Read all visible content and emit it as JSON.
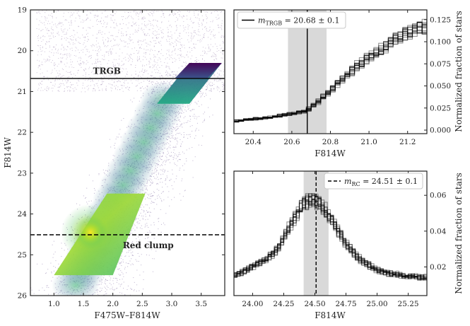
{
  "chart_data": [
    {
      "id": "cmd",
      "type": "scatter",
      "subtype": "color-magnitude density diagram",
      "xlabel": "F475W–F814W",
      "ylabel": "F814W",
      "xlim": [
        0.6,
        3.9
      ],
      "ylim": [
        26,
        19
      ],
      "y_inverted": true,
      "xticks": [
        1.0,
        1.5,
        2.0,
        2.5,
        3.0,
        3.5
      ],
      "xtick_labels": [
        "1.0",
        "1.5",
        "2.0",
        "2.5",
        "3.0",
        "3.5"
      ],
      "yticks": [
        19,
        20,
        21,
        22,
        23,
        24,
        25,
        26
      ],
      "ytick_labels": [
        "19",
        "20",
        "21",
        "22",
        "23",
        "24",
        "25",
        "26"
      ],
      "hlines": [
        {
          "name": "TRGB",
          "y": 20.68,
          "style": "solid"
        },
        {
          "name": "Red clump",
          "y": 24.51,
          "style": "dashed"
        }
      ],
      "selection_boxes": [
        {
          "name": "TRGB box",
          "corners": [
            [
              3.3,
              20.3
            ],
            [
              3.85,
              20.3
            ],
            [
              3.3,
              21.3
            ],
            [
              2.75,
              21.3
            ]
          ]
        },
        {
          "name": "Red clump box",
          "corners": [
            [
              1.9,
              23.5
            ],
            [
              2.55,
              23.5
            ],
            [
              2.0,
              25.5
            ],
            [
              1.0,
              25.5
            ]
          ]
        }
      ],
      "annotations": [
        {
          "text": "TRGB",
          "x": 1.88,
          "y": 20.5
        },
        {
          "text": "Red clump",
          "x": 2.65,
          "y": 24.75
        }
      ]
    },
    {
      "id": "trgb_lf",
      "type": "line",
      "subtype": "step luminosity functions (bootstrap realizations)",
      "xlabel": "F814W",
      "ylabel": "Normalized fraction of stars",
      "xlim": [
        20.3,
        21.3
      ],
      "ylim": [
        -0.004,
        0.136
      ],
      "xticks": [
        20.4,
        20.6,
        20.8,
        21.0,
        21.2
      ],
      "xtick_labels": [
        "20.4",
        "20.6",
        "20.8",
        "21.0",
        "21.2"
      ],
      "yticks": [
        0.0,
        0.025,
        0.05,
        0.075,
        0.1,
        0.125
      ],
      "ytick_labels": [
        "0.000",
        "0.025",
        "0.050",
        "0.075",
        "0.100",
        "0.125"
      ],
      "legend": "m<sub>TRGB</sub> = 20.68 ± 0.1",
      "legend_parts": {
        "symbol": "m",
        "subscript": "TRGB",
        "value": " = 20.68 ± 0.1"
      },
      "marker_line": 20.68,
      "band": [
        20.58,
        20.78
      ],
      "bin_width": 0.025,
      "n_realizations": 16,
      "mean_curve": {
        "x": [
          20.3,
          20.5,
          20.68,
          20.75,
          20.85,
          20.95,
          21.05,
          21.15,
          21.3
        ],
        "y": [
          0.01,
          0.015,
          0.022,
          0.035,
          0.055,
          0.075,
          0.09,
          0.105,
          0.118
        ]
      }
    },
    {
      "id": "rc_lf",
      "type": "line",
      "subtype": "step luminosity functions (bootstrap realizations)",
      "xlabel": "F814W",
      "ylabel": "Normalized fraction of stars",
      "xlim": [
        23.85,
        25.4
      ],
      "ylim": [
        0.004,
        0.0735
      ],
      "xticks": [
        24.0,
        24.25,
        24.5,
        24.75,
        25.0,
        25.25
      ],
      "xtick_labels": [
        "24.00",
        "24.25",
        "24.50",
        "24.75",
        "25.00",
        "25.25"
      ],
      "yticks": [
        0.02,
        0.04,
        0.06
      ],
      "ytick_labels": [
        "0.02",
        "0.04",
        "0.06"
      ],
      "legend": "m<sub>RC</sub> = 24.51 ± 0.1",
      "legend_parts": {
        "symbol": "m",
        "subscript": "RC",
        "value": " = 24.51 ± 0.1"
      },
      "marker_line": 24.51,
      "band": [
        24.41,
        24.61
      ],
      "bin_width": 0.025,
      "n_realizations": 16,
      "mean_curve": {
        "x": [
          23.85,
          24.0,
          24.1,
          24.2,
          24.3,
          24.4,
          24.47,
          24.55,
          24.65,
          24.75,
          24.85,
          25.0,
          25.2,
          25.4
        ],
        "y": [
          0.015,
          0.02,
          0.024,
          0.03,
          0.042,
          0.055,
          0.058,
          0.055,
          0.045,
          0.033,
          0.025,
          0.018,
          0.015,
          0.014
        ]
      }
    }
  ],
  "colors": {
    "axis": "#222222",
    "band": "#d9d9d9",
    "steps": "#000000",
    "viridis": [
      "#440154",
      "#3b528b",
      "#21918c",
      "#5ec962",
      "#fde725"
    ]
  }
}
